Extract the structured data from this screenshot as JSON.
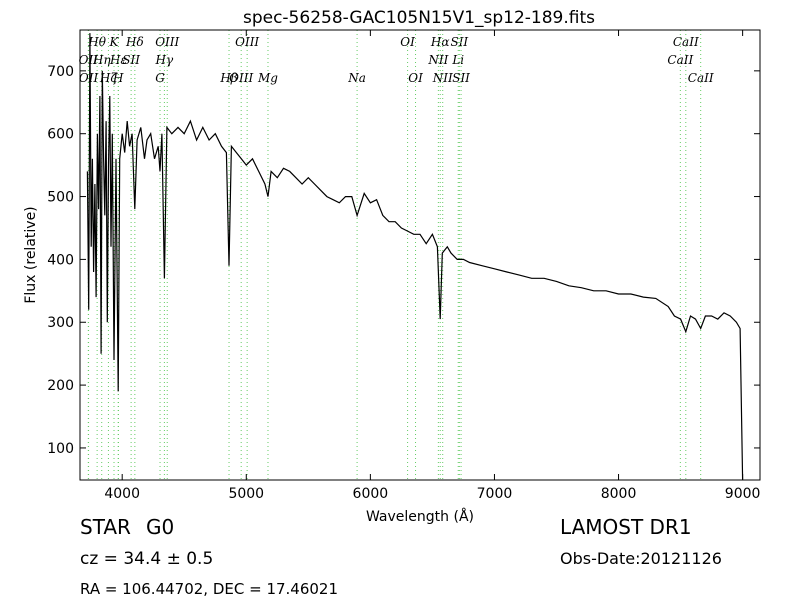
{
  "chart_data": {
    "type": "line",
    "title": "spec-56258-GAC105N15V1_sp12-189.fits",
    "x_label": "Wavelength (Å)",
    "y_label": "Flux (relative)",
    "xlim": [
      3660,
      9140
    ],
    "ylim": [
      49,
      765
    ],
    "xticks": [
      4000,
      5000,
      6000,
      7000,
      8000,
      9000
    ],
    "yticks": [
      100,
      200,
      300,
      400,
      500,
      600,
      700
    ],
    "color": "#000000",
    "line_color": "#66cc66",
    "x": [
      3720,
      3730,
      3740,
      3750,
      3760,
      3770,
      3780,
      3790,
      3800,
      3810,
      3820,
      3830,
      3840,
      3850,
      3860,
      3870,
      3880,
      3890,
      3900,
      3910,
      3920,
      3934,
      3950,
      3968,
      3980,
      4000,
      4020,
      4040,
      4060,
      4080,
      4102,
      4120,
      4150,
      4180,
      4200,
      4230,
      4260,
      4290,
      4305,
      4320,
      4340,
      4360,
      4400,
      4450,
      4500,
      4550,
      4600,
      4650,
      4700,
      4750,
      4800,
      4840,
      4861,
      4880,
      4920,
      4960,
      5000,
      5050,
      5100,
      5150,
      5175,
      5200,
      5250,
      5300,
      5350,
      5400,
      5450,
      5500,
      5550,
      5600,
      5650,
      5700,
      5750,
      5800,
      5850,
      5893,
      5950,
      6000,
      6050,
      6100,
      6150,
      6200,
      6250,
      6300,
      6350,
      6400,
      6450,
      6500,
      6540,
      6563,
      6580,
      6620,
      6650,
      6700,
      6750,
      6800,
      6900,
      7000,
      7100,
      7200,
      7300,
      7400,
      7500,
      7600,
      7700,
      7800,
      7900,
      8000,
      8100,
      8200,
      8300,
      8400,
      8450,
      8500,
      8542,
      8580,
      8620,
      8662,
      8700,
      8750,
      8800,
      8850,
      8900,
      8950,
      8980,
      9000
    ],
    "values": [
      540,
      320,
      760,
      420,
      560,
      380,
      520,
      340,
      600,
      480,
      660,
      250,
      700,
      560,
      470,
      620,
      300,
      550,
      660,
      420,
      600,
      240,
      560,
      190,
      560,
      600,
      570,
      620,
      580,
      600,
      480,
      590,
      610,
      560,
      590,
      600,
      560,
      580,
      540,
      600,
      370,
      610,
      600,
      610,
      600,
      620,
      590,
      610,
      590,
      600,
      580,
      570,
      390,
      580,
      570,
      560,
      550,
      560,
      540,
      520,
      500,
      540,
      530,
      545,
      540,
      530,
      520,
      530,
      520,
      510,
      500,
      495,
      490,
      500,
      500,
      470,
      505,
      490,
      495,
      470,
      460,
      460,
      450,
      445,
      440,
      440,
      425,
      440,
      420,
      305,
      410,
      420,
      410,
      400,
      400,
      395,
      390,
      385,
      380,
      375,
      370,
      370,
      365,
      358,
      355,
      350,
      350,
      345,
      345,
      340,
      338,
      325,
      310,
      305,
      285,
      310,
      305,
      290,
      310,
      310,
      305,
      315,
      310,
      300,
      290,
      50
    ],
    "line_labels": [
      [
        {
          "label": "Hθ",
          "x": 3798
        },
        {
          "label": "K",
          "x": 3934
        },
        {
          "label": "Hδ",
          "x": 4102
        },
        {
          "label": "OIII",
          "x": 4363
        },
        {
          "label": "OIII",
          "x": 5007
        },
        {
          "label": "OI",
          "x": 6300
        },
        {
          "label": "Hα",
          "x": 6563
        },
        {
          "label": "SII",
          "x": 6717
        },
        {
          "label": "CaII",
          "x": 8542
        }
      ],
      [
        {
          "label": "OII",
          "x": 3727
        },
        {
          "label": "Hη",
          "x": 3835
        },
        {
          "label": "Hε",
          "x": 3970
        },
        {
          "label": "SII",
          "x": 4072
        },
        {
          "label": "Hγ",
          "x": 4340
        },
        {
          "label": "NII",
          "x": 6548
        },
        {
          "label": "Li",
          "x": 6708
        },
        {
          "label": "CaII",
          "x": 8498
        }
      ],
      [
        {
          "label": "OII",
          "x": 3729
        },
        {
          "label": "Hζ",
          "x": 3889
        },
        {
          "label": "H",
          "x": 3968
        },
        {
          "label": "G",
          "x": 4305
        },
        {
          "label": "Hβ",
          "x": 4861
        },
        {
          "label": "OIII",
          "x": 4959
        },
        {
          "label": "Mg",
          "x": 5175
        },
        {
          "label": "Na",
          "x": 5893
        },
        {
          "label": "OI",
          "x": 6364
        },
        {
          "label": "NII",
          "x": 6583
        },
        {
          "label": "SII",
          "x": 6731
        },
        {
          "label": "CaII",
          "x": 8662
        }
      ]
    ]
  },
  "info": {
    "object": "STAR",
    "subclass": "G0",
    "survey": "LAMOST DR1",
    "cz": "cz = 34.4 ± 0.5",
    "obs_date": "Obs-Date:20121126",
    "coords": "RA = 106.44702, DEC = 17.46021"
  }
}
